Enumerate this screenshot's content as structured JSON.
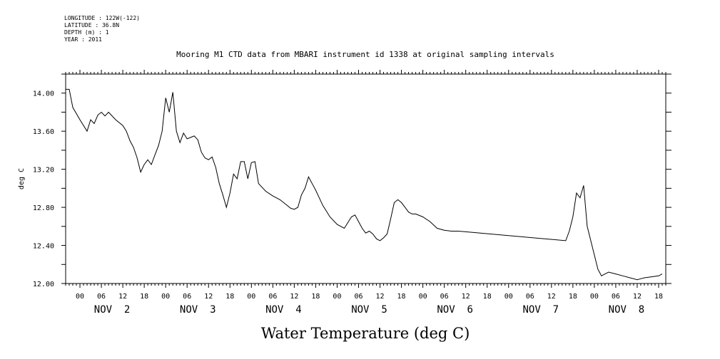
{
  "header": {
    "longitude": "LONGITUDE : 122W(-122)",
    "latitude": "LATITUDE : 36.8N",
    "depth": "DEPTH (m) : 1",
    "year": "YEAR : 2011"
  },
  "chart_data": {
    "type": "line",
    "title": "Mooring M1 CTD data from MBARI instrument id 1338 at original sampling intervals",
    "xlabel": "Water Temperature (deg C)",
    "ylabel": "deg C",
    "ylim": [
      12.0,
      14.2
    ],
    "yticks": [
      "12.00",
      "12.40",
      "12.80",
      "13.20",
      "13.60",
      "14.00"
    ],
    "xlim_hours_label": "2011-11-01T20:00 to 2011-11-08T20:00",
    "hour_tick_labels": [
      "00",
      "06",
      "12",
      "18",
      "00",
      "06",
      "12",
      "18",
      "00",
      "06",
      "12",
      "18",
      "00",
      "06",
      "12",
      "18",
      "00",
      "06",
      "12",
      "18",
      "00",
      "06",
      "12",
      "18",
      "00",
      "06",
      "12",
      "18"
    ],
    "day_labels": [
      "NOV  2",
      "NOV  3",
      "NOV  4",
      "NOV  5",
      "NOV  6",
      "NOV  7",
      "NOV  8"
    ],
    "grid": false,
    "series": [
      {
        "x": [
          "11-01 20:00",
          "11-01 21:00",
          "11-01 22:00",
          "11-02 00:00",
          "11-02 02:00",
          "11-02 03:00",
          "11-02 04:00",
          "11-02 05:00",
          "11-02 06:00",
          "11-02 07:00",
          "11-02 08:00",
          "11-02 10:00",
          "11-02 12:00",
          "11-02 13:00",
          "11-02 14:00",
          "11-02 15:00",
          "11-02 16:00",
          "11-02 17:00",
          "11-02 18:00",
          "11-02 19:00",
          "11-02 20:00",
          "11-02 21:00",
          "11-02 22:00",
          "11-02 23:00",
          "11-03 00:00",
          "11-03 01:00",
          "11-03 02:00",
          "11-03 03:00",
          "11-03 04:00",
          "11-03 05:00",
          "11-03 06:00",
          "11-03 08:00",
          "11-03 09:00",
          "11-03 10:00",
          "11-03 11:00",
          "11-03 12:00",
          "11-03 13:00",
          "11-03 14:00",
          "11-03 15:00",
          "11-03 16:00",
          "11-03 17:00",
          "11-03 18:00",
          "11-03 19:00",
          "11-03 20:00",
          "11-03 21:00",
          "11-03 22:00",
          "11-03 23:00",
          "11-04 00:00",
          "11-04 01:00",
          "11-04 02:00",
          "11-04 04:00",
          "11-04 06:00",
          "11-04 08:00",
          "11-04 10:00",
          "11-04 11:00",
          "11-04 12:00",
          "11-04 13:00",
          "11-04 14:00",
          "11-04 15:00",
          "11-04 16:00",
          "11-04 17:00",
          "11-04 18:00",
          "11-04 19:00",
          "11-04 20:00",
          "11-04 22:00",
          "11-05 00:00",
          "11-05 02:00",
          "11-05 04:00",
          "11-05 05:00",
          "11-05 06:00",
          "11-05 07:00",
          "11-05 08:00",
          "11-05 09:00",
          "11-05 10:00",
          "11-05 11:00",
          "11-05 12:00",
          "11-05 13:00",
          "11-05 14:00",
          "11-05 15:00",
          "11-05 16:00",
          "11-05 17:00",
          "11-05 18:00",
          "11-05 19:00",
          "11-05 20:00",
          "11-05 21:00",
          "11-05 22:00",
          "11-06 00:00",
          "11-06 02:00",
          "11-06 04:00",
          "11-06 06:00",
          "11-06 08:00",
          "11-06 10:00",
          "11-07 16:00",
          "11-07 17:00",
          "11-07 18:00",
          "11-07 19:00",
          "11-07 20:00",
          "11-07 21:00",
          "11-07 22:00",
          "11-07 23:00",
          "11-08 00:00",
          "11-08 01:00",
          "11-08 02:00",
          "11-08 03:00",
          "11-08 04:00",
          "11-08 06:00",
          "11-08 08:00",
          "11-08 10:00",
          "11-08 12:00",
          "11-08 13:00",
          "11-08 14:00",
          "11-08 16:00",
          "11-08 18:00",
          "11-08 19:00"
        ],
        "y": [
          14.04,
          14.04,
          13.85,
          13.72,
          13.6,
          13.72,
          13.68,
          13.77,
          13.8,
          13.76,
          13.8,
          13.72,
          13.66,
          13.6,
          13.5,
          13.43,
          13.32,
          13.17,
          13.25,
          13.3,
          13.25,
          13.35,
          13.45,
          13.6,
          13.95,
          13.8,
          14.01,
          13.6,
          13.48,
          13.58,
          13.52,
          13.55,
          13.51,
          13.38,
          13.32,
          13.3,
          13.33,
          13.22,
          13.05,
          12.93,
          12.8,
          12.95,
          13.15,
          13.1,
          13.28,
          13.28,
          13.1,
          13.27,
          13.28,
          13.05,
          12.97,
          12.92,
          12.88,
          12.82,
          12.79,
          12.78,
          12.8,
          12.93,
          13.0,
          13.12,
          13.05,
          12.98,
          12.9,
          12.82,
          12.7,
          12.62,
          12.58,
          12.7,
          12.72,
          12.65,
          12.58,
          12.53,
          12.55,
          12.52,
          12.47,
          12.45,
          12.48,
          12.52,
          12.68,
          12.85,
          12.88,
          12.85,
          12.8,
          12.75,
          12.73,
          12.73,
          12.7,
          12.65,
          12.58,
          12.56,
          12.55,
          12.55,
          12.45,
          12.55,
          12.7,
          12.95,
          12.9,
          13.03,
          12.6,
          12.45,
          12.3,
          12.15,
          12.08,
          12.1,
          12.12,
          12.1,
          12.08,
          12.06,
          12.04,
          12.05,
          12.06,
          12.07,
          12.08,
          12.1
        ]
      }
    ]
  }
}
